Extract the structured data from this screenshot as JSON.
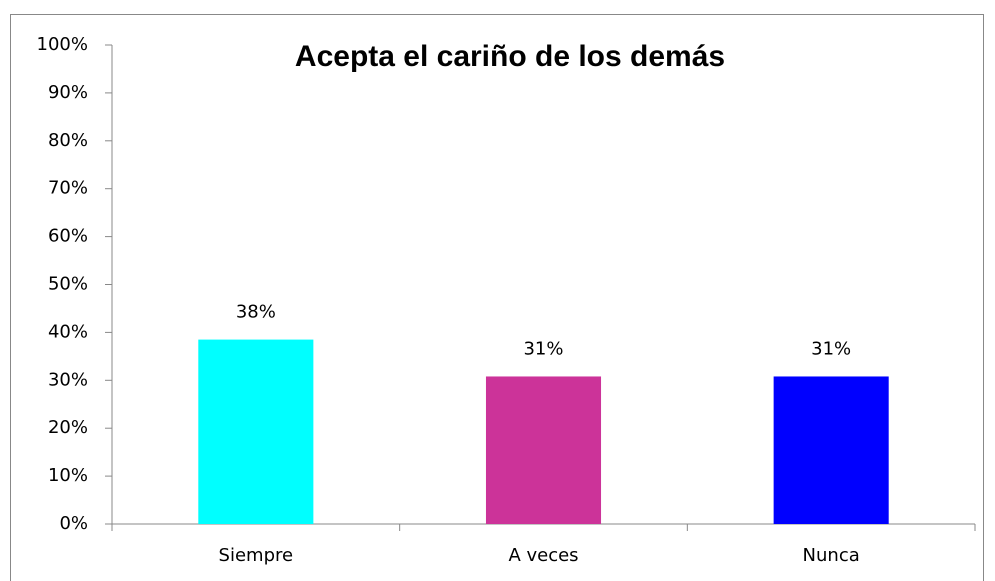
{
  "chart_data": {
    "type": "bar",
    "title": "Acepta el cariño de los demás",
    "categories": [
      "Siempre",
      "A veces",
      "Nunca"
    ],
    "values": [
      38.5,
      30.8,
      30.8
    ],
    "value_labels": [
      "38%",
      "31%",
      "31%"
    ],
    "colors": [
      "#00ffff",
      "#cc3399",
      "#0000ff"
    ],
    "ylim": [
      0,
      100
    ],
    "yticks": [
      {
        "value": 0,
        "label": "0%"
      },
      {
        "value": 10,
        "label": "10%"
      },
      {
        "value": 20,
        "label": "20%"
      },
      {
        "value": 30,
        "label": "30%"
      },
      {
        "value": 40,
        "label": "40%"
      },
      {
        "value": 50,
        "label": "50%"
      },
      {
        "value": 60,
        "label": "60%"
      },
      {
        "value": 70,
        "label": "70%"
      },
      {
        "value": 80,
        "label": "80%"
      },
      {
        "value": 90,
        "label": "90%"
      },
      {
        "value": 100,
        "label": "100%"
      }
    ],
    "grid": false
  }
}
